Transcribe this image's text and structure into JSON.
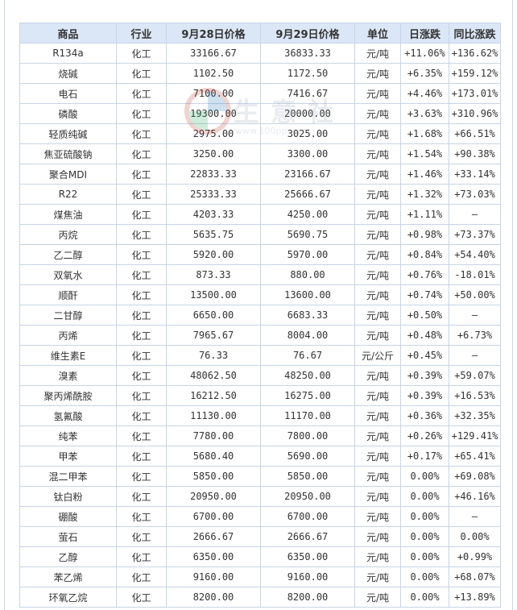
{
  "table": {
    "headers": [
      "商品",
      "行业",
      "9月28日价格",
      "9月29日价格",
      "单位",
      "日涨跌",
      "同比涨跌"
    ],
    "rows": [
      {
        "name": "R134a",
        "industry": "化工",
        "p1": "33166.67",
        "p2": "36833.33",
        "unit": "元/吨",
        "day": "+11.06%",
        "day_dir": "up",
        "yoy": "+136.62%",
        "yoy_dir": "up"
      },
      {
        "name": "烧碱",
        "industry": "化工",
        "p1": "1102.50",
        "p2": "1172.50",
        "unit": "元/吨",
        "day": "+6.35%",
        "day_dir": "up",
        "yoy": "+159.12%",
        "yoy_dir": "up"
      },
      {
        "name": "电石",
        "industry": "化工",
        "p1": "7100.00",
        "p2": "7416.67",
        "unit": "元/吨",
        "day": "+4.46%",
        "day_dir": "up",
        "yoy": "+173.01%",
        "yoy_dir": "up"
      },
      {
        "name": "磷酸",
        "industry": "化工",
        "p1": "19300.00",
        "p2": "20000.00",
        "unit": "元/吨",
        "day": "+3.63%",
        "day_dir": "up",
        "yoy": "+310.96%",
        "yoy_dir": "up"
      },
      {
        "name": "轻质纯碱",
        "industry": "化工",
        "p1": "2975.00",
        "p2": "3025.00",
        "unit": "元/吨",
        "day": "+1.68%",
        "day_dir": "up",
        "yoy": "+66.51%",
        "yoy_dir": "up"
      },
      {
        "name": "焦亚硫酸钠",
        "industry": "化工",
        "p1": "3250.00",
        "p2": "3300.00",
        "unit": "元/吨",
        "day": "+1.54%",
        "day_dir": "up",
        "yoy": "+90.38%",
        "yoy_dir": "up"
      },
      {
        "name": "聚合MDI",
        "industry": "化工",
        "p1": "22833.33",
        "p2": "23166.67",
        "unit": "元/吨",
        "day": "+1.46%",
        "day_dir": "up",
        "yoy": "+33.14%",
        "yoy_dir": "up"
      },
      {
        "name": "R22",
        "industry": "化工",
        "p1": "25333.33",
        "p2": "25666.67",
        "unit": "元/吨",
        "day": "+1.32%",
        "day_dir": "up",
        "yoy": "+73.03%",
        "yoy_dir": "up"
      },
      {
        "name": "煤焦油",
        "industry": "化工",
        "p1": "4203.33",
        "p2": "4250.00",
        "unit": "元/吨",
        "day": "+1.11%",
        "day_dir": "up",
        "yoy": "—",
        "yoy_dir": "flat"
      },
      {
        "name": "丙烷",
        "industry": "化工",
        "p1": "5635.75",
        "p2": "5690.75",
        "unit": "元/吨",
        "day": "+0.98%",
        "day_dir": "up",
        "yoy": "+73.37%",
        "yoy_dir": "up"
      },
      {
        "name": "乙二醇",
        "industry": "化工",
        "p1": "5920.00",
        "p2": "5970.00",
        "unit": "元/吨",
        "day": "+0.84%",
        "day_dir": "up",
        "yoy": "+54.40%",
        "yoy_dir": "up"
      },
      {
        "name": "双氧水",
        "industry": "化工",
        "p1": "873.33",
        "p2": "880.00",
        "unit": "元/吨",
        "day": "+0.76%",
        "day_dir": "up",
        "yoy": "-18.01%",
        "yoy_dir": "down"
      },
      {
        "name": "顺酐",
        "industry": "化工",
        "p1": "13500.00",
        "p2": "13600.00",
        "unit": "元/吨",
        "day": "+0.74%",
        "day_dir": "up",
        "yoy": "+50.00%",
        "yoy_dir": "up"
      },
      {
        "name": "二甘醇",
        "industry": "化工",
        "p1": "6650.00",
        "p2": "6683.33",
        "unit": "元/吨",
        "day": "+0.50%",
        "day_dir": "up",
        "yoy": "—",
        "yoy_dir": "flat"
      },
      {
        "name": "丙烯",
        "industry": "化工",
        "p1": "7965.67",
        "p2": "8004.00",
        "unit": "元/吨",
        "day": "+0.48%",
        "day_dir": "up",
        "yoy": "+6.73%",
        "yoy_dir": "up"
      },
      {
        "name": "维生素E",
        "industry": "化工",
        "p1": "76.33",
        "p2": "76.67",
        "unit": "元/公斤",
        "day": "+0.45%",
        "day_dir": "up",
        "yoy": "—",
        "yoy_dir": "flat"
      },
      {
        "name": "溴素",
        "industry": "化工",
        "p1": "48062.50",
        "p2": "48250.00",
        "unit": "元/吨",
        "day": "+0.39%",
        "day_dir": "up",
        "yoy": "+59.07%",
        "yoy_dir": "up"
      },
      {
        "name": "聚丙烯酰胺",
        "industry": "化工",
        "p1": "16212.50",
        "p2": "16275.00",
        "unit": "元/吨",
        "day": "+0.39%",
        "day_dir": "up",
        "yoy": "+16.53%",
        "yoy_dir": "up"
      },
      {
        "name": "氢氟酸",
        "industry": "化工",
        "p1": "11130.00",
        "p2": "11170.00",
        "unit": "元/吨",
        "day": "+0.36%",
        "day_dir": "up",
        "yoy": "+32.35%",
        "yoy_dir": "up"
      },
      {
        "name": "纯苯",
        "industry": "化工",
        "p1": "7780.00",
        "p2": "7800.00",
        "unit": "元/吨",
        "day": "+0.26%",
        "day_dir": "up",
        "yoy": "+129.41%",
        "yoy_dir": "up"
      },
      {
        "name": "甲苯",
        "industry": "化工",
        "p1": "5680.40",
        "p2": "5690.00",
        "unit": "元/吨",
        "day": "+0.17%",
        "day_dir": "up",
        "yoy": "+65.41%",
        "yoy_dir": "up"
      },
      {
        "name": "混二甲苯",
        "industry": "化工",
        "p1": "5850.00",
        "p2": "5850.00",
        "unit": "元/吨",
        "day": "0.00%",
        "day_dir": "flat",
        "yoy": "+69.08%",
        "yoy_dir": "up"
      },
      {
        "name": "钛白粉",
        "industry": "化工",
        "p1": "20950.00",
        "p2": "20950.00",
        "unit": "元/吨",
        "day": "0.00%",
        "day_dir": "flat",
        "yoy": "+46.16%",
        "yoy_dir": "up"
      },
      {
        "name": "硼酸",
        "industry": "化工",
        "p1": "6700.00",
        "p2": "6700.00",
        "unit": "元/吨",
        "day": "0.00%",
        "day_dir": "flat",
        "yoy": "—",
        "yoy_dir": "flat"
      },
      {
        "name": "萤石",
        "industry": "化工",
        "p1": "2666.67",
        "p2": "2666.67",
        "unit": "元/吨",
        "day": "0.00%",
        "day_dir": "flat",
        "yoy": "0.00%",
        "yoy_dir": "flat"
      },
      {
        "name": "乙醇",
        "industry": "化工",
        "p1": "6350.00",
        "p2": "6350.00",
        "unit": "元/吨",
        "day": "0.00%",
        "day_dir": "flat",
        "yoy": "+0.99%",
        "yoy_dir": "up"
      },
      {
        "name": "苯乙烯",
        "industry": "化工",
        "p1": "9160.00",
        "p2": "9160.00",
        "unit": "元/吨",
        "day": "0.00%",
        "day_dir": "flat",
        "yoy": "+68.07%",
        "yoy_dir": "up"
      },
      {
        "name": "环氧乙烷",
        "industry": "化工",
        "p1": "8200.00",
        "p2": "8200.00",
        "unit": "元/吨",
        "day": "0.00%",
        "day_dir": "flat",
        "yoy": "+13.89%",
        "yoy_dir": "up"
      }
    ]
  },
  "watermark": {
    "text": "生意社",
    "url": "www.100ppi.com"
  },
  "colors": {
    "up": "#e0001b",
    "down": "#1a8a1a",
    "header_bg": "#dbe7f6",
    "name_link": "#1f4f8e"
  }
}
